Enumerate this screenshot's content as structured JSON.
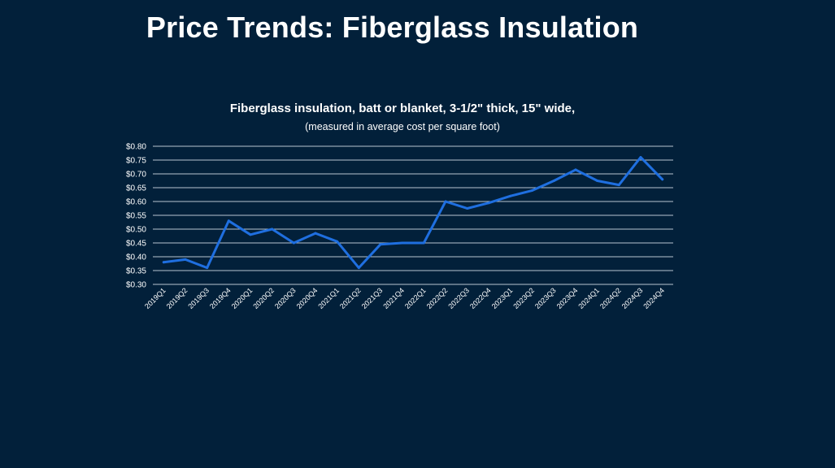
{
  "slide": {
    "title": "Price Trends: Fiberglass Insulation"
  },
  "colors": {
    "background": "#02203a",
    "line": "#1f6fe0",
    "grid": "#b8c4d0",
    "text": "#ffffff"
  },
  "chart_data": {
    "type": "line",
    "title": "Fiberglass insulation, batt or blanket, 3-1/2\" thick, 15\" wide,",
    "subtitle": "(measured in average cost per square foot)",
    "xlabel": "",
    "ylabel": "",
    "ylim": [
      0.3,
      0.8
    ],
    "ytick_step": 0.05,
    "ytick_labels": [
      "$0.30",
      "$0.35",
      "$0.40",
      "$0.45",
      "$0.50",
      "$0.55",
      "$0.60",
      "$0.65",
      "$0.70",
      "$0.75",
      "$0.80"
    ],
    "grid": true,
    "legend": "none",
    "categories": [
      "2019Q1",
      "2019Q2",
      "2019Q3",
      "2019Q4",
      "2020Q1",
      "2020Q2",
      "2020Q3",
      "2020Q4",
      "2021Q1",
      "2021Q2",
      "2021Q3",
      "2021Q4",
      "2022Q1",
      "2022Q2",
      "2022Q3",
      "2022Q4",
      "2023Q1",
      "2023Q2",
      "2023Q3",
      "2023Q4",
      "2024Q1",
      "2024Q2",
      "2024Q3",
      "2024Q4"
    ],
    "series": [
      {
        "values": [
          0.38,
          0.39,
          0.36,
          0.53,
          0.48,
          0.5,
          0.45,
          0.485,
          0.455,
          0.36,
          0.445,
          0.45,
          0.45,
          0.6,
          0.575,
          0.595,
          0.62,
          0.64,
          0.675,
          0.715,
          0.675,
          0.66,
          0.76,
          0.68
        ]
      }
    ]
  }
}
